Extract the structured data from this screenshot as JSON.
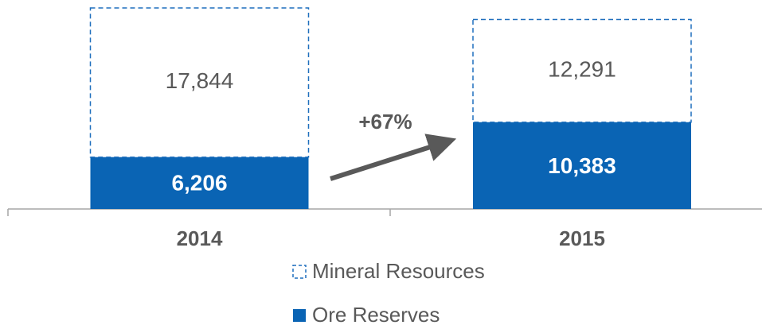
{
  "chart_data": {
    "type": "stacked_bar",
    "categories": [
      "2014",
      "2015"
    ],
    "series": [
      {
        "name": "Ore Reserves",
        "color": "#0a64b4",
        "values": [
          6206,
          10383
        ],
        "value_labels": [
          "6,206",
          "10,383"
        ]
      },
      {
        "name": "Mineral Resources",
        "color": "#1f6fbd",
        "dashed": true,
        "values": [
          17844,
          12291
        ],
        "value_labels": [
          "17,844",
          "12,291"
        ]
      }
    ],
    "ylim": [
      0,
      24050
    ],
    "annotation": "+67%"
  }
}
